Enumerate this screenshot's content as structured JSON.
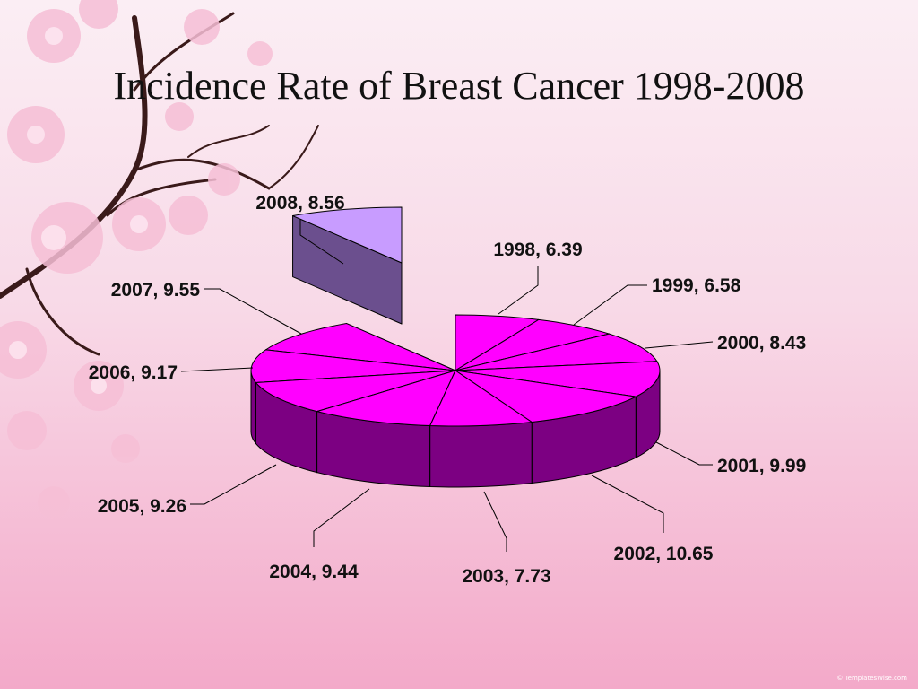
{
  "credit": "© TemplatesWise.com",
  "chart_data": {
    "type": "pie",
    "title": "Incidence Rate of Breast Cancer 1998-2008",
    "categories": [
      "1998",
      "1999",
      "2000",
      "2001",
      "2002",
      "2003",
      "2004",
      "2005",
      "2006",
      "2007",
      "2008"
    ],
    "values": [
      6.39,
      6.58,
      8.43,
      9.99,
      10.65,
      7.73,
      9.44,
      9.26,
      9.17,
      9.55,
      8.56
    ],
    "labels": [
      "1998, 6.39",
      "1999, 6.58",
      "2000, 8.43",
      "2001, 9.99",
      "2002, 10.65",
      "2003, 7.73",
      "2004, 9.44",
      "2005, 9.26",
      "2006, 9.17",
      "2007, 9.55",
      "2008, 8.56"
    ],
    "exploded": "2008",
    "three_d": true,
    "colors": {
      "top": "#ff00ff",
      "side": "#7c0082",
      "exploded_top": "#c89cff",
      "exploded_side": "#6b4f8e",
      "edge": "#000000"
    }
  }
}
